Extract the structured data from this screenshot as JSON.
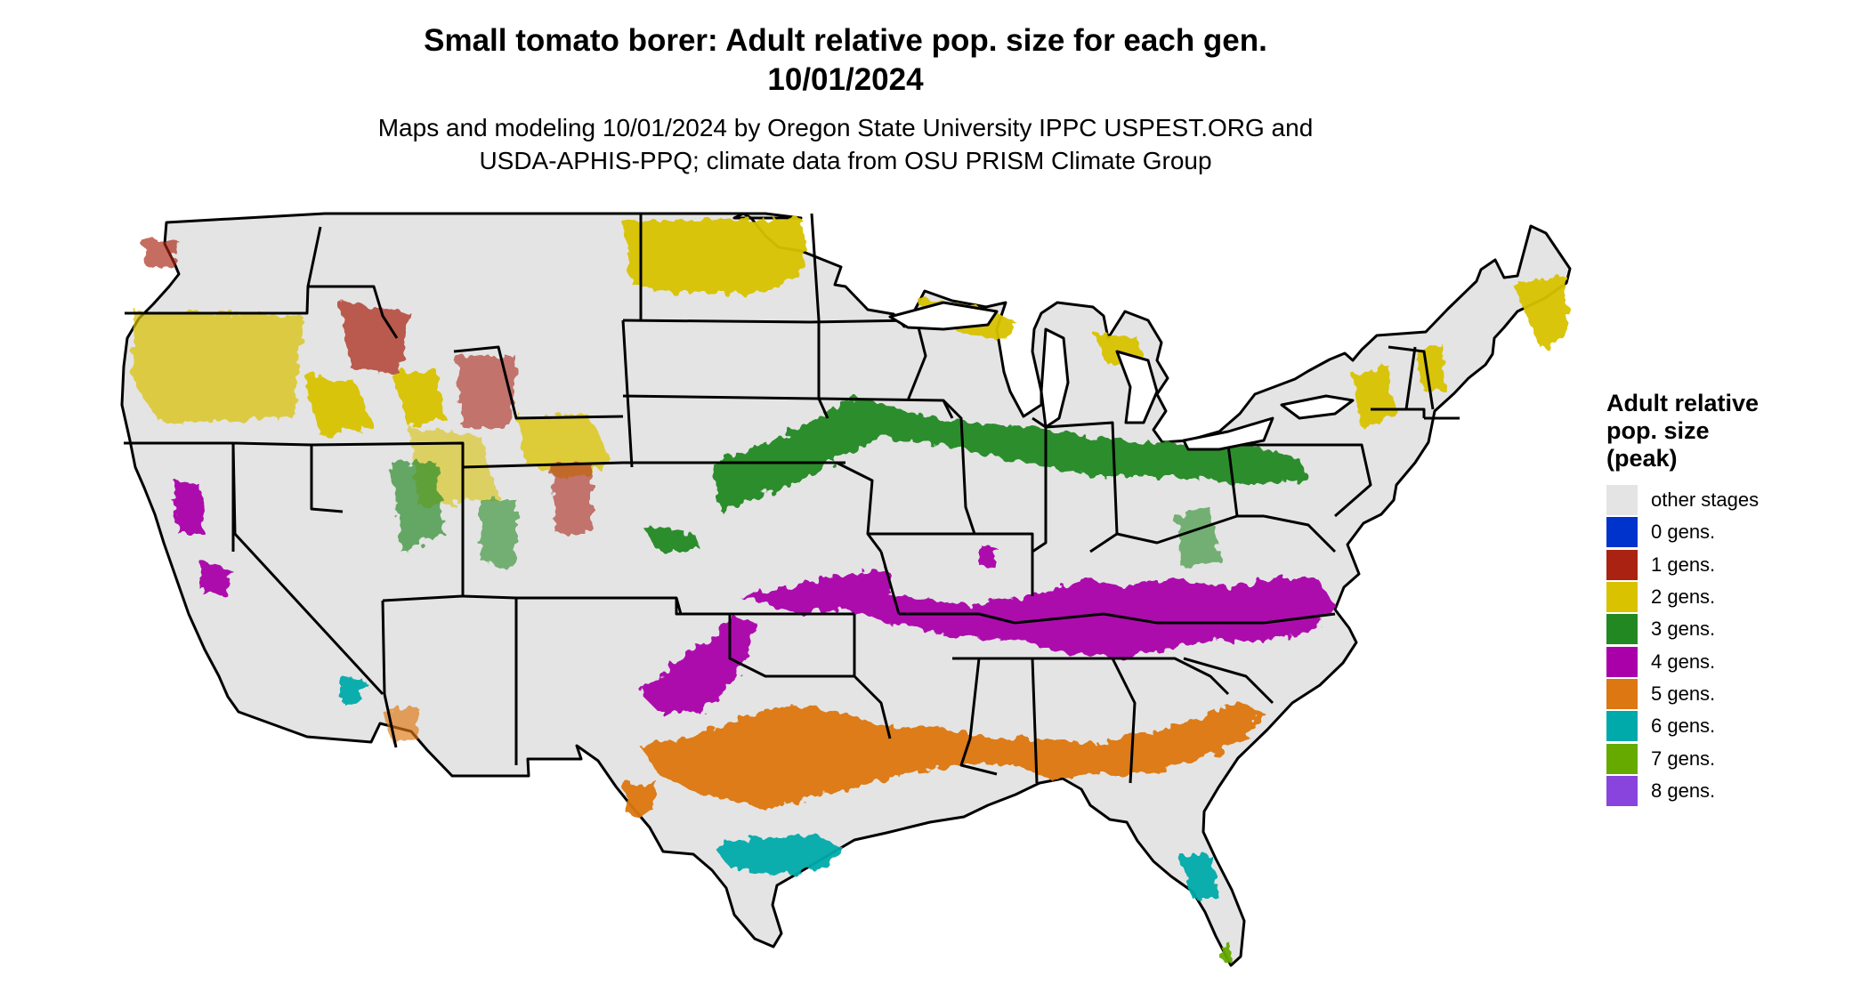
{
  "header": {
    "title_line1": "Small tomato borer: Adult relative pop. size for each gen.",
    "title_line2": "10/01/2024",
    "subtitle_line1": "Maps and modeling 10/01/2024 by Oregon State University IPPC USPEST.ORG and",
    "subtitle_line2": "USDA-APHIS-PPQ; climate data from OSU PRISM Climate Group"
  },
  "legend": {
    "title_line1": "Adult relative",
    "title_line2": "pop. size",
    "title_line3": "(peak)",
    "items": [
      {
        "label": "other stages",
        "color": "#e4e4e4"
      },
      {
        "label": "0 gens.",
        "color": "#0033cc"
      },
      {
        "label": "1 gens.",
        "color": "#aa2211"
      },
      {
        "label": "2 gens.",
        "color": "#d9c200"
      },
      {
        "label": "3 gens.",
        "color": "#228822"
      },
      {
        "label": "4 gens.",
        "color": "#aa00aa"
      },
      {
        "label": "5 gens.",
        "color": "#dd7711"
      },
      {
        "label": "6 gens.",
        "color": "#00aaaa"
      },
      {
        "label": "7 gens.",
        "color": "#66aa00"
      },
      {
        "label": "8 gens.",
        "color": "#8844dd"
      }
    ]
  },
  "map": {
    "background_color": "#e4e4e4",
    "border_color": "#000000"
  }
}
